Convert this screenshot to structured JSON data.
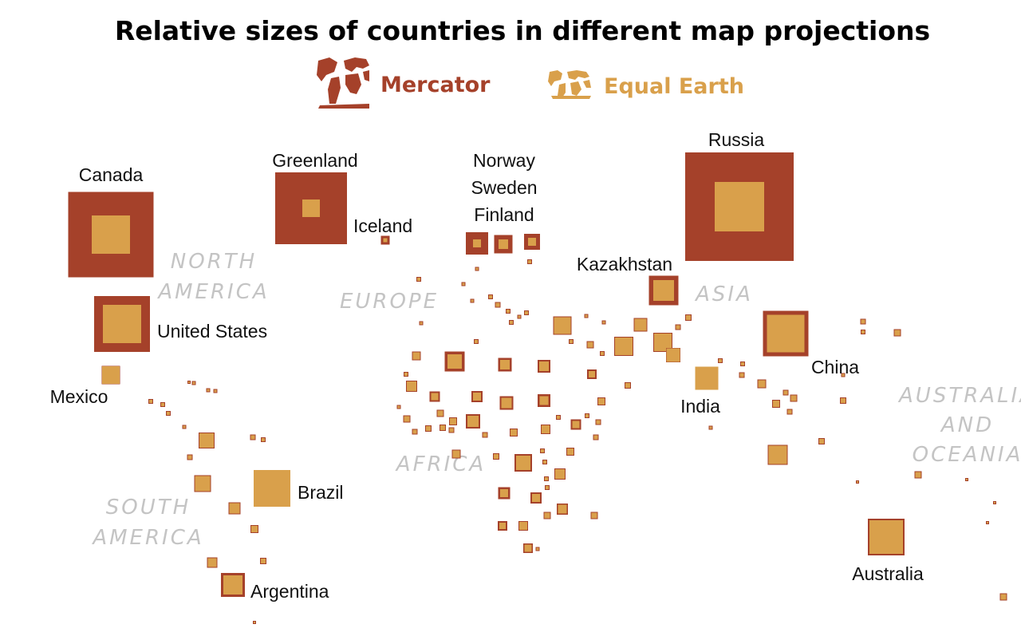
{
  "chart_data": {
    "type": "proportional-squares",
    "title": "Relative sizes of countries in different map projections",
    "legend": [
      {
        "name": "Mercator",
        "color": "#a5412a",
        "icon": "world-map-icon"
      },
      {
        "name": "Equal Earth",
        "color": "#d9a04b",
        "icon": "world-map-icon"
      }
    ],
    "regions": [
      {
        "name": "NORTH\nAMERICA"
      },
      {
        "name": "EUROPE"
      },
      {
        "name": "ASIA"
      },
      {
        "name": "AFRICA"
      },
      {
        "name": "SOUTH\nAMERICA"
      },
      {
        "name": "AUSTRALIA\nAND\nOCEANIA"
      }
    ],
    "countries": [
      {
        "name": "Canada",
        "mercator": 107,
        "equal_earth": 48
      },
      {
        "name": "United States",
        "mercator": 70,
        "equal_earth": 48
      },
      {
        "name": "Mexico",
        "mercator": 23,
        "equal_earth": 22
      },
      {
        "name": "Greenland",
        "mercator": 90,
        "equal_earth": 22
      },
      {
        "name": "Iceland",
        "mercator": 11,
        "equal_earth": 5
      },
      {
        "name": "Norway",
        "mercator": 28,
        "equal_earth": 10
      },
      {
        "name": "Sweden",
        "mercator": 23,
        "equal_earth": 12
      },
      {
        "name": "Finland",
        "mercator": 20,
        "equal_earth": 10
      },
      {
        "name": "Russia",
        "mercator": 136,
        "equal_earth": 62
      },
      {
        "name": "Kazakhstan",
        "mercator": 37,
        "equal_earth": 26
      },
      {
        "name": "China",
        "mercator": 57,
        "equal_earth": 47
      },
      {
        "name": "India",
        "mercator": 29,
        "equal_earth": 29
      },
      {
        "name": "Brazil",
        "mercator": 46,
        "equal_earth": 46
      },
      {
        "name": "Argentina",
        "mercator": 30,
        "equal_earth": 24
      },
      {
        "name": "Australia",
        "mercator": 46,
        "equal_earth": 42
      }
    ],
    "unlabeled_squares": [
      {
        "mercator": 25,
        "equal_earth": 18
      },
      {
        "mercator": 17,
        "equal_earth": 12
      },
      {
        "mercator": 16,
        "equal_earth": 12
      },
      {
        "mercator": 12,
        "equal_earth": 8
      },
      {
        "mercator": 13,
        "equal_earth": 9
      },
      {
        "mercator": 14,
        "equal_earth": 10
      },
      {
        "mercator": 17,
        "equal_earth": 13
      },
      {
        "mercator": 16,
        "equal_earth": 11
      },
      {
        "mercator": 13,
        "equal_earth": 9
      },
      {
        "mercator": 18,
        "equal_earth": 14
      },
      {
        "mercator": 22,
        "equal_earth": 18
      },
      {
        "mercator": 15,
        "equal_earth": 10
      },
      {
        "mercator": 14,
        "equal_earth": 10
      },
      {
        "mercator": 14,
        "equal_earth": 11
      },
      {
        "mercator": 12,
        "equal_earth": 8
      },
      {
        "mercator": 12,
        "equal_earth": 9
      },
      {
        "mercator": 24,
        "equal_earth": 22
      },
      {
        "mercator": 23,
        "equal_earth": 21
      },
      {
        "mercator": 24,
        "equal_earth": 22
      },
      {
        "mercator": 18,
        "equal_earth": 17
      },
      {
        "mercator": 17,
        "equal_earth": 15
      },
      {
        "mercator": 25,
        "equal_earth": 23
      },
      {
        "mercator": 21,
        "equal_earth": 19
      },
      {
        "mercator": 15,
        "equal_earth": 13
      },
      {
        "mercator": 13,
        "equal_earth": 11
      },
      {
        "mercator": 20,
        "equal_earth": 18
      }
    ]
  }
}
